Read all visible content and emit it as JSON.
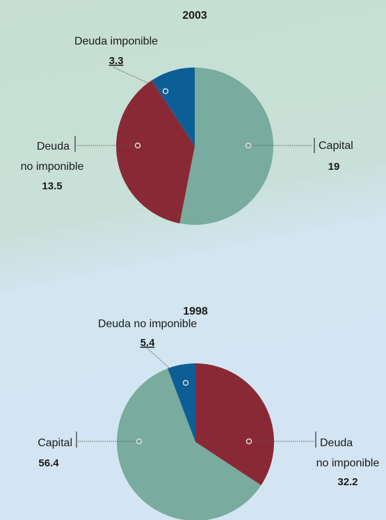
{
  "chart_data": [
    {
      "type": "pie",
      "title": "2003",
      "categories": [
        [
          "Capital"
        ],
        [
          "Deuda",
          "no imponible"
        ],
        [
          "Deuda imponible"
        ]
      ],
      "values": [
        19,
        13.5,
        3.3
      ],
      "colors": [
        "#79ab9f",
        "#8a2936",
        "#0b5f96"
      ]
    },
    {
      "type": "pie",
      "title": "1998",
      "categories": [
        [
          "Deuda",
          "no imponible"
        ],
        [
          "Capital"
        ],
        [
          "Deuda no imponible"
        ]
      ],
      "values": [
        32.2,
        56.4,
        5.4
      ],
      "colors": [
        "#8a2936",
        "#79ab9f",
        "#0b5f96"
      ]
    }
  ]
}
